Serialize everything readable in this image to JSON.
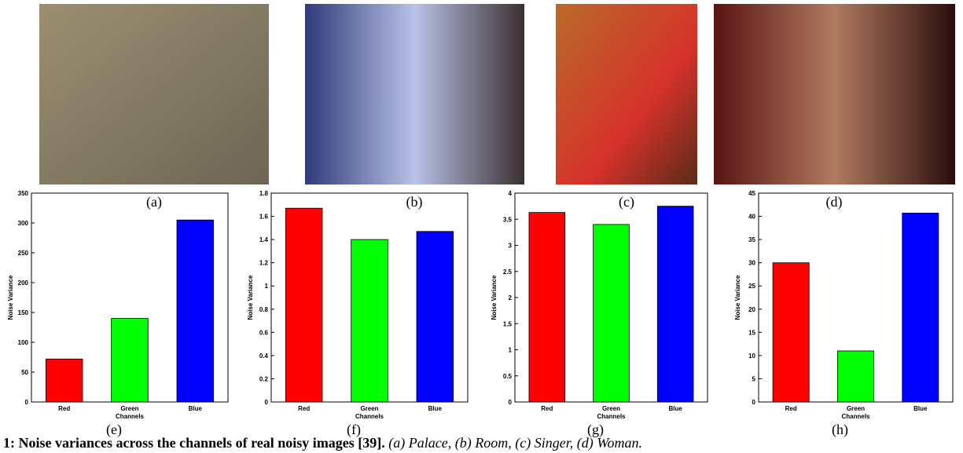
{
  "images": [
    {
      "label": "(a)"
    },
    {
      "label": "(b)"
    },
    {
      "label": "(c)"
    },
    {
      "label": "(d)"
    }
  ],
  "chart_data": [
    {
      "type": "bar",
      "panel_label": "(e)",
      "ylabel": "Noise Variance",
      "xlabel": "Channels",
      "categories": [
        "Red",
        "Green",
        "Blue"
      ],
      "values": [
        72,
        140,
        305
      ],
      "colors": [
        "#ff0000",
        "#00ff00",
        "#0000ff"
      ],
      "ylim": [
        0,
        350
      ],
      "yticks": [
        0,
        50,
        100,
        150,
        200,
        250,
        300,
        350
      ]
    },
    {
      "type": "bar",
      "panel_label": "(f)",
      "ylabel": "Noise Variance",
      "xlabel": "Channels",
      "categories": [
        "Red",
        "Green",
        "Blue"
      ],
      "values": [
        1.67,
        1.4,
        1.47
      ],
      "colors": [
        "#ff0000",
        "#00ff00",
        "#0000ff"
      ],
      "ylim": [
        0,
        1.8
      ],
      "yticks": [
        0,
        0.2,
        0.4,
        0.6,
        0.8,
        1,
        1.2,
        1.4,
        1.6,
        1.8
      ]
    },
    {
      "type": "bar",
      "panel_label": "(g)",
      "ylabel": "Noise Variance",
      "xlabel": "Channels",
      "categories": [
        "Red",
        "Green",
        "Blue"
      ],
      "values": [
        3.63,
        3.4,
        3.75
      ],
      "colors": [
        "#ff0000",
        "#00ff00",
        "#0000ff"
      ],
      "ylim": [
        0,
        4
      ],
      "yticks": [
        0,
        0.5,
        1,
        1.5,
        2,
        2.5,
        3,
        3.5,
        4
      ]
    },
    {
      "type": "bar",
      "panel_label": "(h)",
      "ylabel": "Noise Variance",
      "xlabel": "Channels",
      "categories": [
        "Red",
        "Green",
        "Blue"
      ],
      "values": [
        30,
        11,
        40.7
      ],
      "colors": [
        "#ff0000",
        "#00ff00",
        "#0000ff"
      ],
      "ylim": [
        0,
        45
      ],
      "yticks": [
        0,
        5,
        10,
        15,
        20,
        25,
        30,
        35,
        40,
        45
      ]
    }
  ],
  "caption": {
    "title": "1: Noise variances across the channels of real noisy images [39].",
    "text": "(a) Palace, (b) Room, (c) Singer, (d) Woman."
  }
}
